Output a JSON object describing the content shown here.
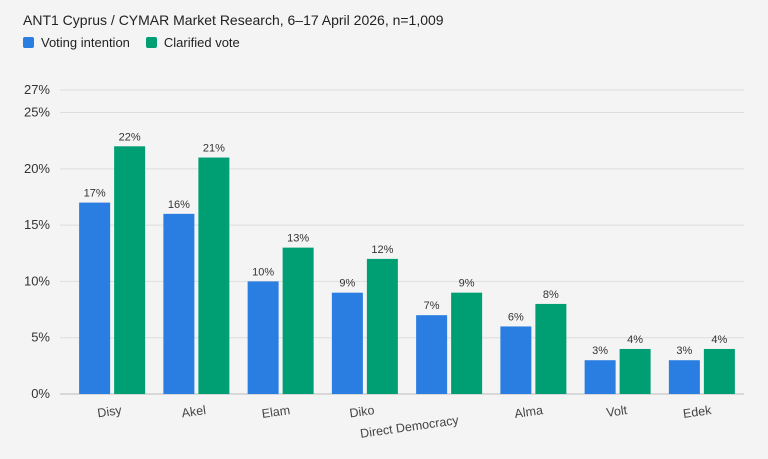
{
  "title": "ANT1 Cyprus / CYMAR Market Research, 6–17 April 2026, n=1,009",
  "legend": [
    {
      "label": "Voting intention",
      "color": "#2a7de1"
    },
    {
      "label": "Clarified vote",
      "color": "#009e73"
    }
  ],
  "chart_data": {
    "type": "bar",
    "title": "ANT1 Cyprus / CYMAR Market Research, 6–17 April 2026, n=1,009",
    "categories": [
      "Disy",
      "Akel",
      "Elam",
      "Diko",
      "Direct Democracy",
      "Alma",
      "Volt",
      "Edek"
    ],
    "series": [
      {
        "name": "Voting intention",
        "color": "#2a7de1",
        "values": [
          17,
          16,
          10,
          9,
          7,
          6,
          3,
          3
        ]
      },
      {
        "name": "Clarified vote",
        "color": "#009e73",
        "values": [
          22,
          21,
          13,
          12,
          9,
          8,
          4,
          4
        ]
      }
    ],
    "yticks": [
      0,
      5,
      10,
      15,
      20,
      25,
      27
    ],
    "ylim": [
      0,
      27
    ],
    "value_suffix": "%",
    "grid": true,
    "legend_position": "top-left"
  }
}
